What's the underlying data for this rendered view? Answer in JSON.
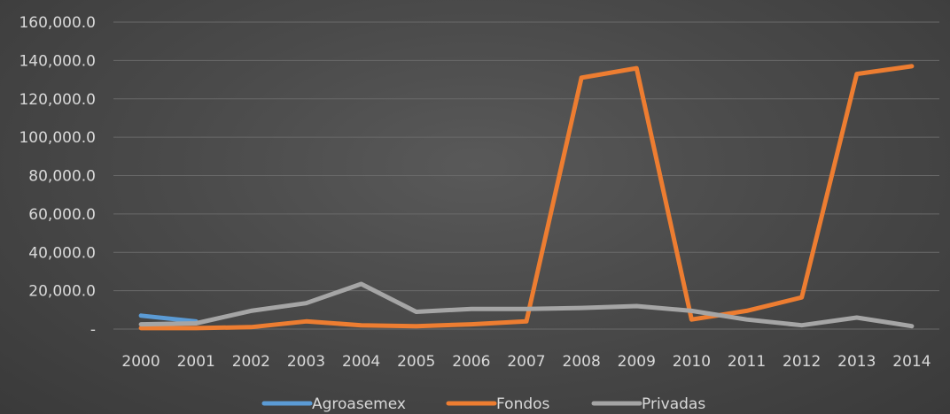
{
  "chart_data": {
    "type": "line",
    "title": "",
    "xlabel": "",
    "ylabel": "",
    "categories": [
      "2000",
      "2001",
      "2002",
      "2003",
      "2004",
      "2005",
      "2006",
      "2007",
      "2008",
      "2009",
      "2010",
      "2011",
      "2012",
      "2013",
      "2014"
    ],
    "ylim": [
      0,
      160000
    ],
    "y_ticks": [
      {
        "value": 0,
        "label": "-"
      },
      {
        "value": 20000,
        "label": "20,000.0"
      },
      {
        "value": 40000,
        "label": "40,000.0"
      },
      {
        "value": 60000,
        "label": "60,000.0"
      },
      {
        "value": 80000,
        "label": "80,000.0"
      },
      {
        "value": 100000,
        "label": "100,000.0"
      },
      {
        "value": 120000,
        "label": "120,000.0"
      },
      {
        "value": 140000,
        "label": "140,000.0"
      },
      {
        "value": 160000,
        "label": "160,000.0"
      }
    ],
    "grid": true,
    "legend_position": "bottom",
    "series": [
      {
        "name": "Agroasemex",
        "color": "#5b9bd5",
        "values": [
          7000,
          4000,
          null,
          null,
          null,
          null,
          null,
          null,
          null,
          null,
          null,
          null,
          null,
          null,
          null
        ]
      },
      {
        "name": "Fondos",
        "color": "#ed7d31",
        "values": [
          500,
          500,
          1000,
          4000,
          2000,
          1500,
          2500,
          4000,
          131000,
          136000,
          5000,
          9500,
          16500,
          133000,
          137000
        ]
      },
      {
        "name": "Privadas",
        "color": "#a5a5a5",
        "values": [
          2500,
          3000,
          9500,
          13500,
          23500,
          9000,
          10500,
          10500,
          11000,
          12000,
          9500,
          5000,
          2000,
          6000,
          1500
        ]
      }
    ]
  }
}
